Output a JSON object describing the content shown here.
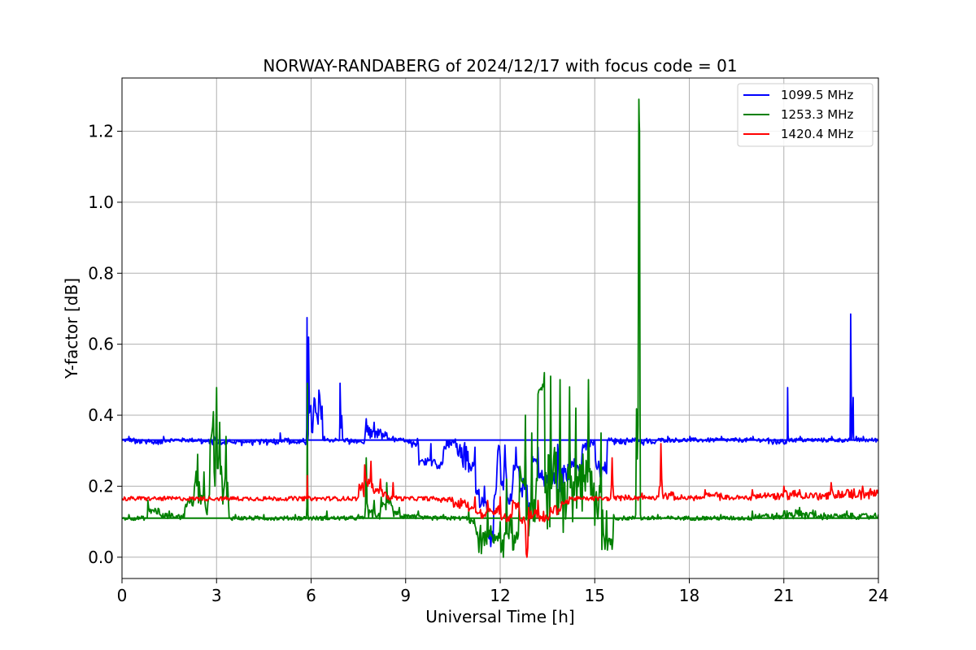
{
  "chart_data": {
    "type": "line",
    "title": "NORWAY-RANDABERG of 2024/12/17 with focus code = 01",
    "xlabel": "Universal Time [h]",
    "ylabel": "Y-factor [dB]",
    "xlim": [
      0,
      24
    ],
    "ylim": [
      -0.06,
      1.35
    ],
    "xticks": [
      0,
      3,
      6,
      9,
      12,
      15,
      18,
      21,
      24
    ],
    "yticks": [
      0.0,
      0.2,
      0.4,
      0.6,
      0.8,
      1.0,
      1.2
    ],
    "grid": true,
    "legend_position": "upper right",
    "series": [
      {
        "name": "1099.5 MHz",
        "color": "#0000ff",
        "baseline": 0.33,
        "x": [
          0.0,
          0.2,
          0.22,
          0.4,
          0.42,
          1.3,
          1.32,
          2.5,
          2.52,
          2.9,
          2.92,
          3.0,
          3.02,
          4.1,
          4.12,
          5.0,
          5.02,
          5.3,
          5.32,
          5.85,
          5.87,
          5.9,
          5.92,
          6.4,
          6.42,
          6.9,
          6.92,
          7.0,
          7.2,
          7.22,
          7.7,
          7.75,
          7.8,
          7.9,
          8.0,
          8.2,
          8.4,
          8.6,
          8.8,
          9.0,
          9.2,
          9.4,
          9.6,
          9.8,
          10.0,
          10.2,
          10.4,
          10.6,
          10.8,
          11.0,
          11.2,
          11.35,
          11.5,
          11.6,
          11.7,
          11.8,
          11.9,
          12.0,
          12.1,
          12.2,
          12.3,
          12.4,
          12.5,
          12.6,
          12.7,
          12.8,
          12.9,
          13.0,
          13.2,
          13.4,
          13.6,
          13.8,
          14.0,
          14.2,
          14.4,
          14.6,
          14.8,
          15.0,
          15.2,
          15.4,
          15.6,
          15.8,
          16.0,
          16.4,
          16.42,
          16.8,
          17.0,
          17.3,
          17.32,
          18.0,
          18.02,
          19.0,
          19.02,
          20.0,
          20.02,
          20.5,
          20.52,
          21.1,
          21.12,
          21.15,
          21.5,
          21.52,
          22.5,
          22.52,
          23.0,
          23.1,
          23.12,
          23.15,
          23.2,
          23.22,
          23.3,
          23.5,
          23.52,
          24.0
        ],
        "y": [
          0.33,
          0.33,
          0.34,
          0.33,
          0.32,
          0.33,
          0.34,
          0.33,
          0.32,
          0.33,
          0.34,
          0.33,
          0.32,
          0.33,
          0.32,
          0.33,
          0.35,
          0.33,
          0.32,
          0.33,
          0.675,
          0.33,
          0.62,
          0.33,
          0.34,
          0.33,
          0.49,
          0.33,
          0.33,
          0.32,
          0.33,
          0.39,
          0.37,
          0.36,
          0.38,
          0.36,
          0.35,
          0.34,
          0.33,
          0.33,
          0.31,
          0.32,
          0.26,
          0.32,
          0.25,
          0.3,
          0.33,
          0.31,
          0.27,
          0.24,
          0.31,
          0.14,
          0.2,
          0.12,
          0.03,
          0.16,
          0.25,
          0.28,
          0.19,
          0.22,
          0.15,
          0.21,
          0.31,
          0.24,
          0.17,
          0.3,
          0.11,
          0.26,
          0.31,
          0.2,
          0.33,
          0.18,
          0.21,
          0.32,
          0.24,
          0.3,
          0.31,
          0.33,
          0.22,
          0.33,
          0.33,
          0.32,
          0.33,
          0.33,
          0.33,
          0.32,
          0.33,
          0.33,
          0.34,
          0.33,
          0.34,
          0.33,
          0.34,
          0.33,
          0.34,
          0.33,
          0.32,
          0.33,
          0.478,
          0.33,
          0.33,
          0.34,
          0.33,
          0.34,
          0.33,
          0.33,
          0.685,
          0.33,
          0.45,
          0.33,
          0.34,
          0.33,
          0.34,
          0.33
        ]
      },
      {
        "name": "1253.3 MHz",
        "color": "#008000",
        "baseline": 0.11,
        "x": [
          0.0,
          0.2,
          0.22,
          0.8,
          0.82,
          1.2,
          1.5,
          1.8,
          2.0,
          2.3,
          2.4,
          2.5,
          2.6,
          2.7,
          2.8,
          2.9,
          2.95,
          3.0,
          3.05,
          3.1,
          3.2,
          3.3,
          3.4,
          3.6,
          4.0,
          4.5,
          5.0,
          5.5,
          5.85,
          5.88,
          5.9,
          5.95,
          6.5,
          7.0,
          7.5,
          7.7,
          7.75,
          7.8,
          8.0,
          8.2,
          8.4,
          8.6,
          8.8,
          9.0,
          9.4,
          9.8,
          10.2,
          10.6,
          11.0,
          11.2,
          11.3,
          11.4,
          11.6,
          11.8,
          12.0,
          12.1,
          12.2,
          12.4,
          12.6,
          12.8,
          12.9,
          13.0,
          13.1,
          13.2,
          13.4,
          13.5,
          13.6,
          13.8,
          13.9,
          14.0,
          14.2,
          14.3,
          14.4,
          14.6,
          14.8,
          15.0,
          15.2,
          15.4,
          15.6,
          16.0,
          16.3,
          16.4,
          16.42,
          16.45,
          16.5,
          17.0,
          18.0,
          19.0,
          19.5,
          20.0,
          20.5,
          21.0,
          21.5,
          22.0,
          22.5,
          23.0,
          23.5,
          24.0
        ],
        "y": [
          0.11,
          0.11,
          0.12,
          0.11,
          0.16,
          0.12,
          0.13,
          0.12,
          0.14,
          0.2,
          0.29,
          0.15,
          0.24,
          0.12,
          0.33,
          0.41,
          0.2,
          0.478,
          0.25,
          0.38,
          0.15,
          0.34,
          0.11,
          0.12,
          0.11,
          0.12,
          0.11,
          0.12,
          0.11,
          0.49,
          0.12,
          0.11,
          0.13,
          0.11,
          0.12,
          0.11,
          0.28,
          0.14,
          0.16,
          0.13,
          0.21,
          0.13,
          0.14,
          0.12,
          0.13,
          0.11,
          0.12,
          0.11,
          0.13,
          0.09,
          0.05,
          0.01,
          0.14,
          0.04,
          0.1,
          0.0,
          0.22,
          0.02,
          0.15,
          0.4,
          0.06,
          0.35,
          0.1,
          0.46,
          0.52,
          0.08,
          0.51,
          0.12,
          0.5,
          0.07,
          0.48,
          0.1,
          0.42,
          0.13,
          0.5,
          0.09,
          0.35,
          0.02,
          0.12,
          0.11,
          0.12,
          1.29,
          1.2,
          0.12,
          0.11,
          0.12,
          0.11,
          0.12,
          0.11,
          0.13,
          0.12,
          0.13,
          0.14,
          0.13,
          0.12,
          0.13,
          0.12,
          0.12
        ]
      },
      {
        "name": "1420.4 MHz",
        "color": "#ff0000",
        "baseline": 0.165,
        "x": [
          0.0,
          0.5,
          1.0,
          1.5,
          2.0,
          2.5,
          3.0,
          3.5,
          4.0,
          4.5,
          5.0,
          5.5,
          5.85,
          5.88,
          5.9,
          6.5,
          7.0,
          7.5,
          7.7,
          7.8,
          7.9,
          8.0,
          8.2,
          8.4,
          8.6,
          8.8,
          9.0,
          9.5,
          10.0,
          10.5,
          11.0,
          11.2,
          11.4,
          11.6,
          11.8,
          12.0,
          12.2,
          12.4,
          12.6,
          12.8,
          12.85,
          12.9,
          13.0,
          13.2,
          13.4,
          13.6,
          13.8,
          14.0,
          14.2,
          14.5,
          15.0,
          15.5,
          15.55,
          15.6,
          16.0,
          16.5,
          17.0,
          17.1,
          17.15,
          17.5,
          18.0,
          18.5,
          19.0,
          19.5,
          20.0,
          20.5,
          21.0,
          21.5,
          22.0,
          22.5,
          23.0,
          23.5,
          24.0
        ],
        "y": [
          0.165,
          0.17,
          0.165,
          0.17,
          0.165,
          0.17,
          0.165,
          0.17,
          0.165,
          0.17,
          0.165,
          0.17,
          0.165,
          0.23,
          0.165,
          0.17,
          0.165,
          0.17,
          0.26,
          0.2,
          0.27,
          0.18,
          0.22,
          0.17,
          0.21,
          0.17,
          0.165,
          0.17,
          0.165,
          0.16,
          0.13,
          0.17,
          0.11,
          0.16,
          0.12,
          0.17,
          0.1,
          0.16,
          0.14,
          0.09,
          0.0,
          0.14,
          0.11,
          0.16,
          0.1,
          0.14,
          0.12,
          0.15,
          0.17,
          0.165,
          0.17,
          0.165,
          0.28,
          0.17,
          0.17,
          0.18,
          0.17,
          0.32,
          0.18,
          0.18,
          0.17,
          0.19,
          0.18,
          0.17,
          0.19,
          0.18,
          0.2,
          0.19,
          0.18,
          0.21,
          0.19,
          0.2,
          0.19
        ]
      }
    ]
  }
}
